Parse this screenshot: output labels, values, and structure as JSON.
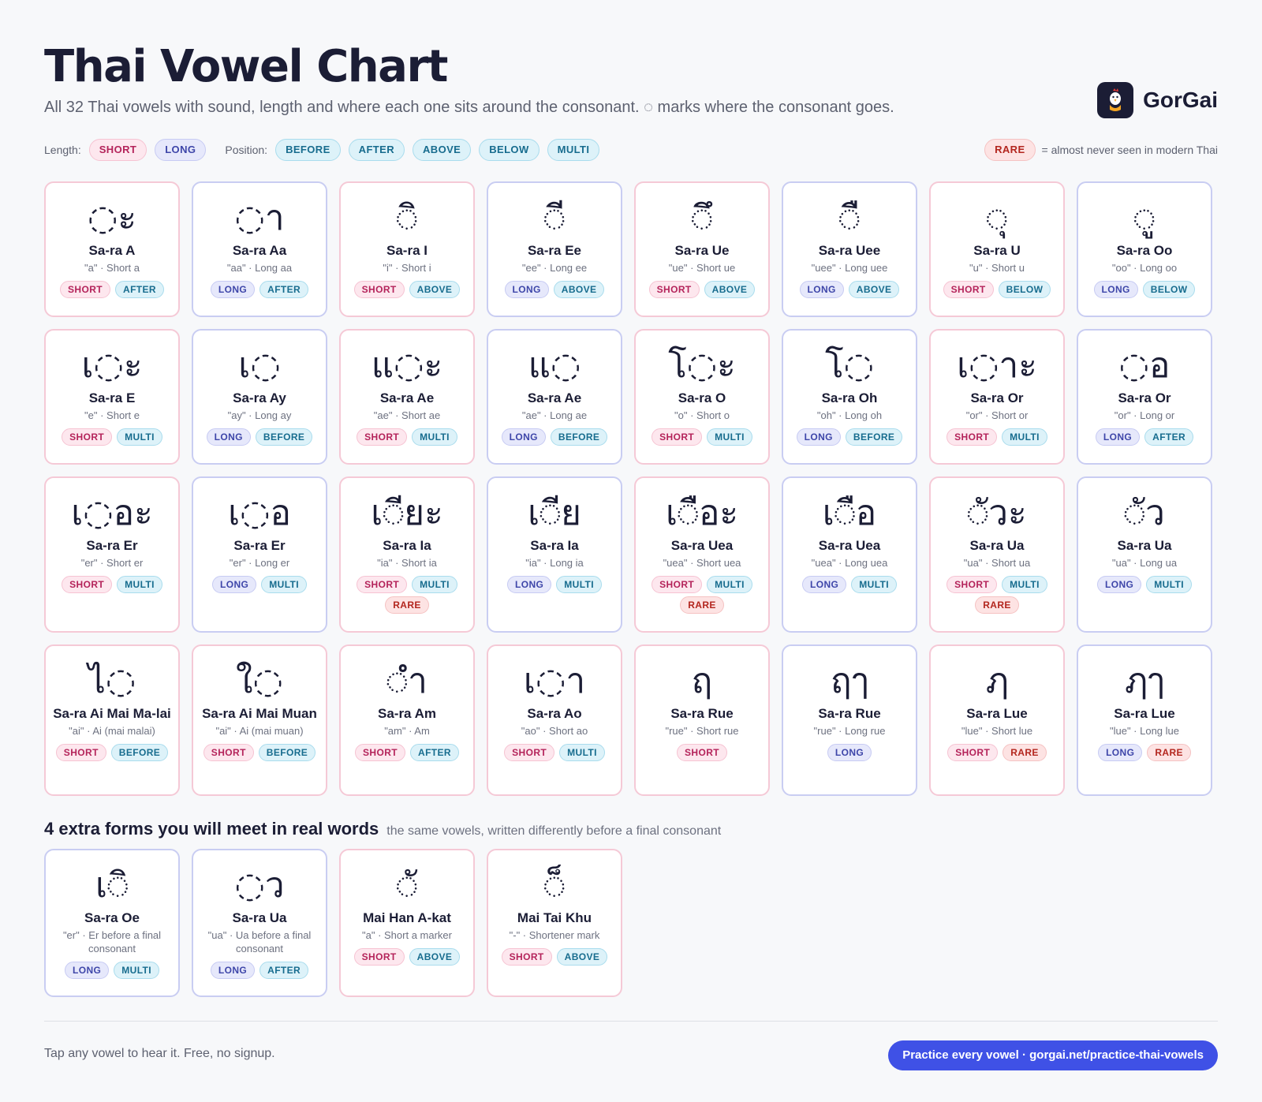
{
  "header": {
    "title": "Thai Vowel Chart",
    "subtitle": "All 32 Thai vowels with sound, length and where each one sits around the consonant. ◌ marks where the consonant goes.",
    "brand": "GorGai"
  },
  "legend": {
    "length_label": "Length:",
    "position_label": "Position:",
    "short": "SHORT",
    "long": "LONG",
    "before": "BEFORE",
    "after": "AFTER",
    "above": "ABOVE",
    "below": "BELOW",
    "multi": "MULTI",
    "rare": "RARE",
    "rare_note": "= almost never seen in modern Thai"
  },
  "vowels": [
    {
      "glyph": "◌ะ",
      "name": "Sa-ra A",
      "desc": "\"a\" · Short a",
      "length": "SHORT",
      "tags": [
        "AFTER"
      ]
    },
    {
      "glyph": "◌า",
      "name": "Sa-ra Aa",
      "desc": "\"aa\" · Long aa",
      "length": "LONG",
      "tags": [
        "AFTER"
      ]
    },
    {
      "glyph": "◌ิ",
      "name": "Sa-ra I",
      "desc": "\"i\" · Short i",
      "length": "SHORT",
      "tags": [
        "ABOVE"
      ]
    },
    {
      "glyph": "◌ี",
      "name": "Sa-ra Ee",
      "desc": "\"ee\" · Long ee",
      "length": "LONG",
      "tags": [
        "ABOVE"
      ]
    },
    {
      "glyph": "◌ึ",
      "name": "Sa-ra Ue",
      "desc": "\"ue\" · Short ue",
      "length": "SHORT",
      "tags": [
        "ABOVE"
      ]
    },
    {
      "glyph": "◌ื",
      "name": "Sa-ra Uee",
      "desc": "\"uee\" · Long uee",
      "length": "LONG",
      "tags": [
        "ABOVE"
      ]
    },
    {
      "glyph": "◌ุ",
      "name": "Sa-ra U",
      "desc": "\"u\" · Short u",
      "length": "SHORT",
      "tags": [
        "BELOW"
      ]
    },
    {
      "glyph": "◌ู",
      "name": "Sa-ra Oo",
      "desc": "\"oo\" · Long oo",
      "length": "LONG",
      "tags": [
        "BELOW"
      ]
    },
    {
      "glyph": "เ◌ะ",
      "name": "Sa-ra E",
      "desc": "\"e\" · Short e",
      "length": "SHORT",
      "tags": [
        "MULTI"
      ]
    },
    {
      "glyph": "เ◌",
      "name": "Sa-ra Ay",
      "desc": "\"ay\" · Long ay",
      "length": "LONG",
      "tags": [
        "BEFORE"
      ]
    },
    {
      "glyph": "แ◌ะ",
      "name": "Sa-ra Ae",
      "desc": "\"ae\" · Short ae",
      "length": "SHORT",
      "tags": [
        "MULTI"
      ]
    },
    {
      "glyph": "แ◌",
      "name": "Sa-ra Ae",
      "desc": "\"ae\" · Long ae",
      "length": "LONG",
      "tags": [
        "BEFORE"
      ]
    },
    {
      "glyph": "โ◌ะ",
      "name": "Sa-ra O",
      "desc": "\"o\" · Short o",
      "length": "SHORT",
      "tags": [
        "MULTI"
      ]
    },
    {
      "glyph": "โ◌",
      "name": "Sa-ra Oh",
      "desc": "\"oh\" · Long oh",
      "length": "LONG",
      "tags": [
        "BEFORE"
      ]
    },
    {
      "glyph": "เ◌าะ",
      "name": "Sa-ra Or",
      "desc": "\"or\" · Short or",
      "length": "SHORT",
      "tags": [
        "MULTI"
      ]
    },
    {
      "glyph": "◌อ",
      "name": "Sa-ra Or",
      "desc": "\"or\" · Long or",
      "length": "LONG",
      "tags": [
        "AFTER"
      ]
    },
    {
      "glyph": "เ◌อะ",
      "name": "Sa-ra Er",
      "desc": "\"er\" · Short er",
      "length": "SHORT",
      "tags": [
        "MULTI"
      ]
    },
    {
      "glyph": "เ◌อ",
      "name": "Sa-ra Er",
      "desc": "\"er\" · Long er",
      "length": "LONG",
      "tags": [
        "MULTI"
      ]
    },
    {
      "glyph": "เ◌ียะ",
      "name": "Sa-ra Ia",
      "desc": "\"ia\" · Short ia",
      "length": "SHORT",
      "tags": [
        "MULTI",
        "RARE"
      ]
    },
    {
      "glyph": "เ◌ีย",
      "name": "Sa-ra Ia",
      "desc": "\"ia\" · Long ia",
      "length": "LONG",
      "tags": [
        "MULTI"
      ]
    },
    {
      "glyph": "เ◌ือะ",
      "name": "Sa-ra Uea",
      "desc": "\"uea\" · Short uea",
      "length": "SHORT",
      "tags": [
        "MULTI",
        "RARE"
      ]
    },
    {
      "glyph": "เ◌ือ",
      "name": "Sa-ra Uea",
      "desc": "\"uea\" · Long uea",
      "length": "LONG",
      "tags": [
        "MULTI"
      ]
    },
    {
      "glyph": "◌ัวะ",
      "name": "Sa-ra Ua",
      "desc": "\"ua\" · Short ua",
      "length": "SHORT",
      "tags": [
        "MULTI",
        "RARE"
      ]
    },
    {
      "glyph": "◌ัว",
      "name": "Sa-ra Ua",
      "desc": "\"ua\" · Long ua",
      "length": "LONG",
      "tags": [
        "MULTI"
      ]
    },
    {
      "glyph": "ไ◌",
      "name": "Sa-ra Ai Mai Ma-lai",
      "desc": "\"ai\" · Ai (mai malai)",
      "length": "SHORT",
      "tags": [
        "BEFORE"
      ]
    },
    {
      "glyph": "ใ◌",
      "name": "Sa-ra Ai Mai Muan",
      "desc": "\"ai\" · Ai (mai muan)",
      "length": "SHORT",
      "tags": [
        "BEFORE"
      ]
    },
    {
      "glyph": "◌ำ",
      "name": "Sa-ra Am",
      "desc": "\"am\" · Am",
      "length": "SHORT",
      "tags": [
        "AFTER"
      ]
    },
    {
      "glyph": "เ◌า",
      "name": "Sa-ra Ao",
      "desc": "\"ao\" · Short ao",
      "length": "SHORT",
      "tags": [
        "MULTI"
      ]
    },
    {
      "glyph": "ฤ",
      "name": "Sa-ra Rue",
      "desc": "\"rue\" · Short rue",
      "length": "SHORT",
      "tags": []
    },
    {
      "glyph": "ฤๅ",
      "name": "Sa-ra Rue",
      "desc": "\"rue\" · Long rue",
      "length": "LONG",
      "tags": []
    },
    {
      "glyph": "ฦ",
      "name": "Sa-ra Lue",
      "desc": "\"lue\" · Short lue",
      "length": "SHORT",
      "tags": [
        "RARE"
      ]
    },
    {
      "glyph": "ฦๅ",
      "name": "Sa-ra Lue",
      "desc": "\"lue\" · Long lue",
      "length": "LONG",
      "tags": [
        "RARE"
      ]
    }
  ],
  "extras": {
    "title": "4 extra forms you will meet in real words",
    "subtitle": "the same vowels, written differently before a final consonant",
    "items": [
      {
        "glyph": "เ◌ิ",
        "name": "Sa-ra Oe",
        "desc": "\"er\" · Er before a final consonant",
        "length": "LONG",
        "tags": [
          "MULTI"
        ]
      },
      {
        "glyph": "◌ว",
        "name": "Sa-ra Ua",
        "desc": "\"ua\" · Ua before a final consonant",
        "length": "LONG",
        "tags": [
          "AFTER"
        ]
      },
      {
        "glyph": "◌ั",
        "name": "Mai Han A-kat",
        "desc": "\"a\" · Short a marker",
        "length": "SHORT",
        "tags": [
          "ABOVE"
        ]
      },
      {
        "glyph": "◌็",
        "name": "Mai Tai Khu",
        "desc": "\"-\" · Shortener mark",
        "length": "SHORT",
        "tags": [
          "ABOVE"
        ]
      }
    ]
  },
  "footer": {
    "note": "Tap any vowel to hear it. Free, no signup.",
    "cta": "Practice every vowel · gorgai.net/practice-thai-vowels"
  },
  "colors": {
    "short_border": "#f5c9d6",
    "long_border": "#c9cdf2",
    "accent": "#3f51e6",
    "ink": "#1b1d35"
  }
}
